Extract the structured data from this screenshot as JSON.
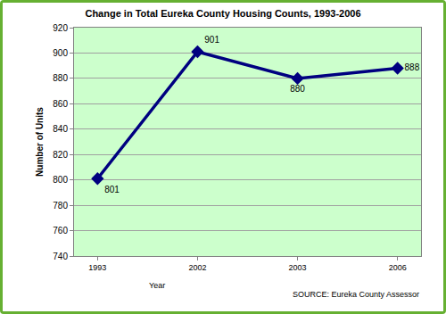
{
  "chart_data": {
    "type": "line",
    "title": "Change in Total Eureka County Housing Counts, 1993-2006",
    "x_label": "Year",
    "y_label": "Number of Units",
    "annotations": [
      "SOURCE: Eureka County Assessor"
    ],
    "categories": [
      "1993",
      "2002",
      "2003",
      "2006"
    ],
    "values": [
      801,
      901,
      880,
      888
    ],
    "color": "#000080",
    "marker": "diamond",
    "data_labels": true,
    "ylim": [
      740,
      920
    ],
    "yticks": [
      740,
      760,
      780,
      800,
      820,
      840,
      860,
      880,
      900,
      920
    ],
    "grid": true
  }
}
